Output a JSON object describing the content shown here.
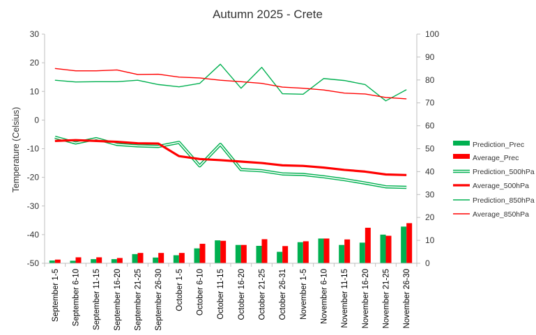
{
  "chart_data": {
    "type": "bar+line",
    "title": "Autumn 2025 - Crete",
    "ylabel_left": "Temperature (Celsius)",
    "ylabel_right": "",
    "ylim_left": [
      -50,
      30
    ],
    "yticks_left": [
      "-50",
      "-40",
      "-30",
      "-20",
      "-10",
      "0",
      "10",
      "20",
      "30"
    ],
    "ylim_right": [
      0,
      100
    ],
    "yticks_right": [
      "0",
      "10",
      "20",
      "30",
      "40",
      "50",
      "60",
      "70",
      "80",
      "90",
      "100"
    ],
    "categories": [
      "September 1-5",
      "September 6-10",
      "September 11-15",
      "September 16-20",
      "September 21-25",
      "September 26-30",
      "October 1-5",
      "October 6-10",
      "October 11-15",
      "October 16-20",
      "October 21-25",
      "October 26-31",
      "November 1-5",
      "November 6-10",
      "November 11-15",
      "November 16-20",
      "November 21-25",
      "November 26-30"
    ],
    "legend_position": "right",
    "series": [
      {
        "name": "Prediction_Prec",
        "kind": "bar",
        "axis": "right",
        "color": "#00b050",
        "values": [
          1.2,
          1.1,
          1.8,
          1.8,
          4.0,
          2.5,
          3.5,
          6.5,
          10.0,
          8.0,
          7.6,
          5.0,
          9.2,
          10.8,
          8.0,
          9.0,
          12.5,
          16.0
        ]
      },
      {
        "name": "Average_Prec",
        "kind": "bar",
        "axis": "right",
        "color": "#ff0000",
        "values": [
          1.6,
          2.6,
          2.6,
          2.3,
          4.5,
          4.5,
          4.5,
          8.5,
          9.8,
          8.0,
          10.5,
          7.5,
          9.6,
          10.8,
          10.4,
          15.5,
          12.0,
          17.5
        ]
      },
      {
        "name": "Prediction_500hPa",
        "kind": "line",
        "style": "double",
        "axis": "left",
        "color": "#00b050",
        "values": [
          -6.0,
          -8.0,
          -6.5,
          -8.5,
          -9.0,
          -9.2,
          -7.8,
          -16.0,
          -8.5,
          -17.3,
          -17.7,
          -18.8,
          -19.0,
          -19.8,
          -20.8,
          -22.0,
          -23.3,
          -23.5
        ]
      },
      {
        "name": "Average_500hPa",
        "kind": "line",
        "style": "thick",
        "axis": "left",
        "color": "#ff0000",
        "values": [
          -7.3,
          -7.0,
          -7.3,
          -7.6,
          -8.1,
          -8.2,
          -12.6,
          -13.6,
          -14.0,
          -14.5,
          -15.0,
          -15.8,
          -16.0,
          -16.6,
          -17.4,
          -18.0,
          -19.0,
          -19.2
        ]
      },
      {
        "name": "Prediction_850hPa",
        "kind": "line",
        "style": "thin",
        "axis": "left",
        "color": "#00b050",
        "values": [
          13.9,
          13.3,
          13.4,
          13.4,
          13.9,
          12.4,
          11.6,
          12.8,
          19.5,
          11.1,
          18.4,
          9.2,
          9.0,
          14.5,
          13.8,
          12.4,
          6.7,
          10.6
        ]
      },
      {
        "name": "Average_850hPa",
        "kind": "line",
        "style": "thin",
        "axis": "left",
        "color": "#ff0000",
        "values": [
          18.0,
          17.2,
          17.2,
          17.5,
          15.9,
          16.0,
          15.0,
          14.7,
          13.9,
          13.4,
          12.8,
          11.5,
          11.1,
          10.5,
          9.4,
          9.1,
          7.9,
          7.4
        ]
      }
    ]
  }
}
